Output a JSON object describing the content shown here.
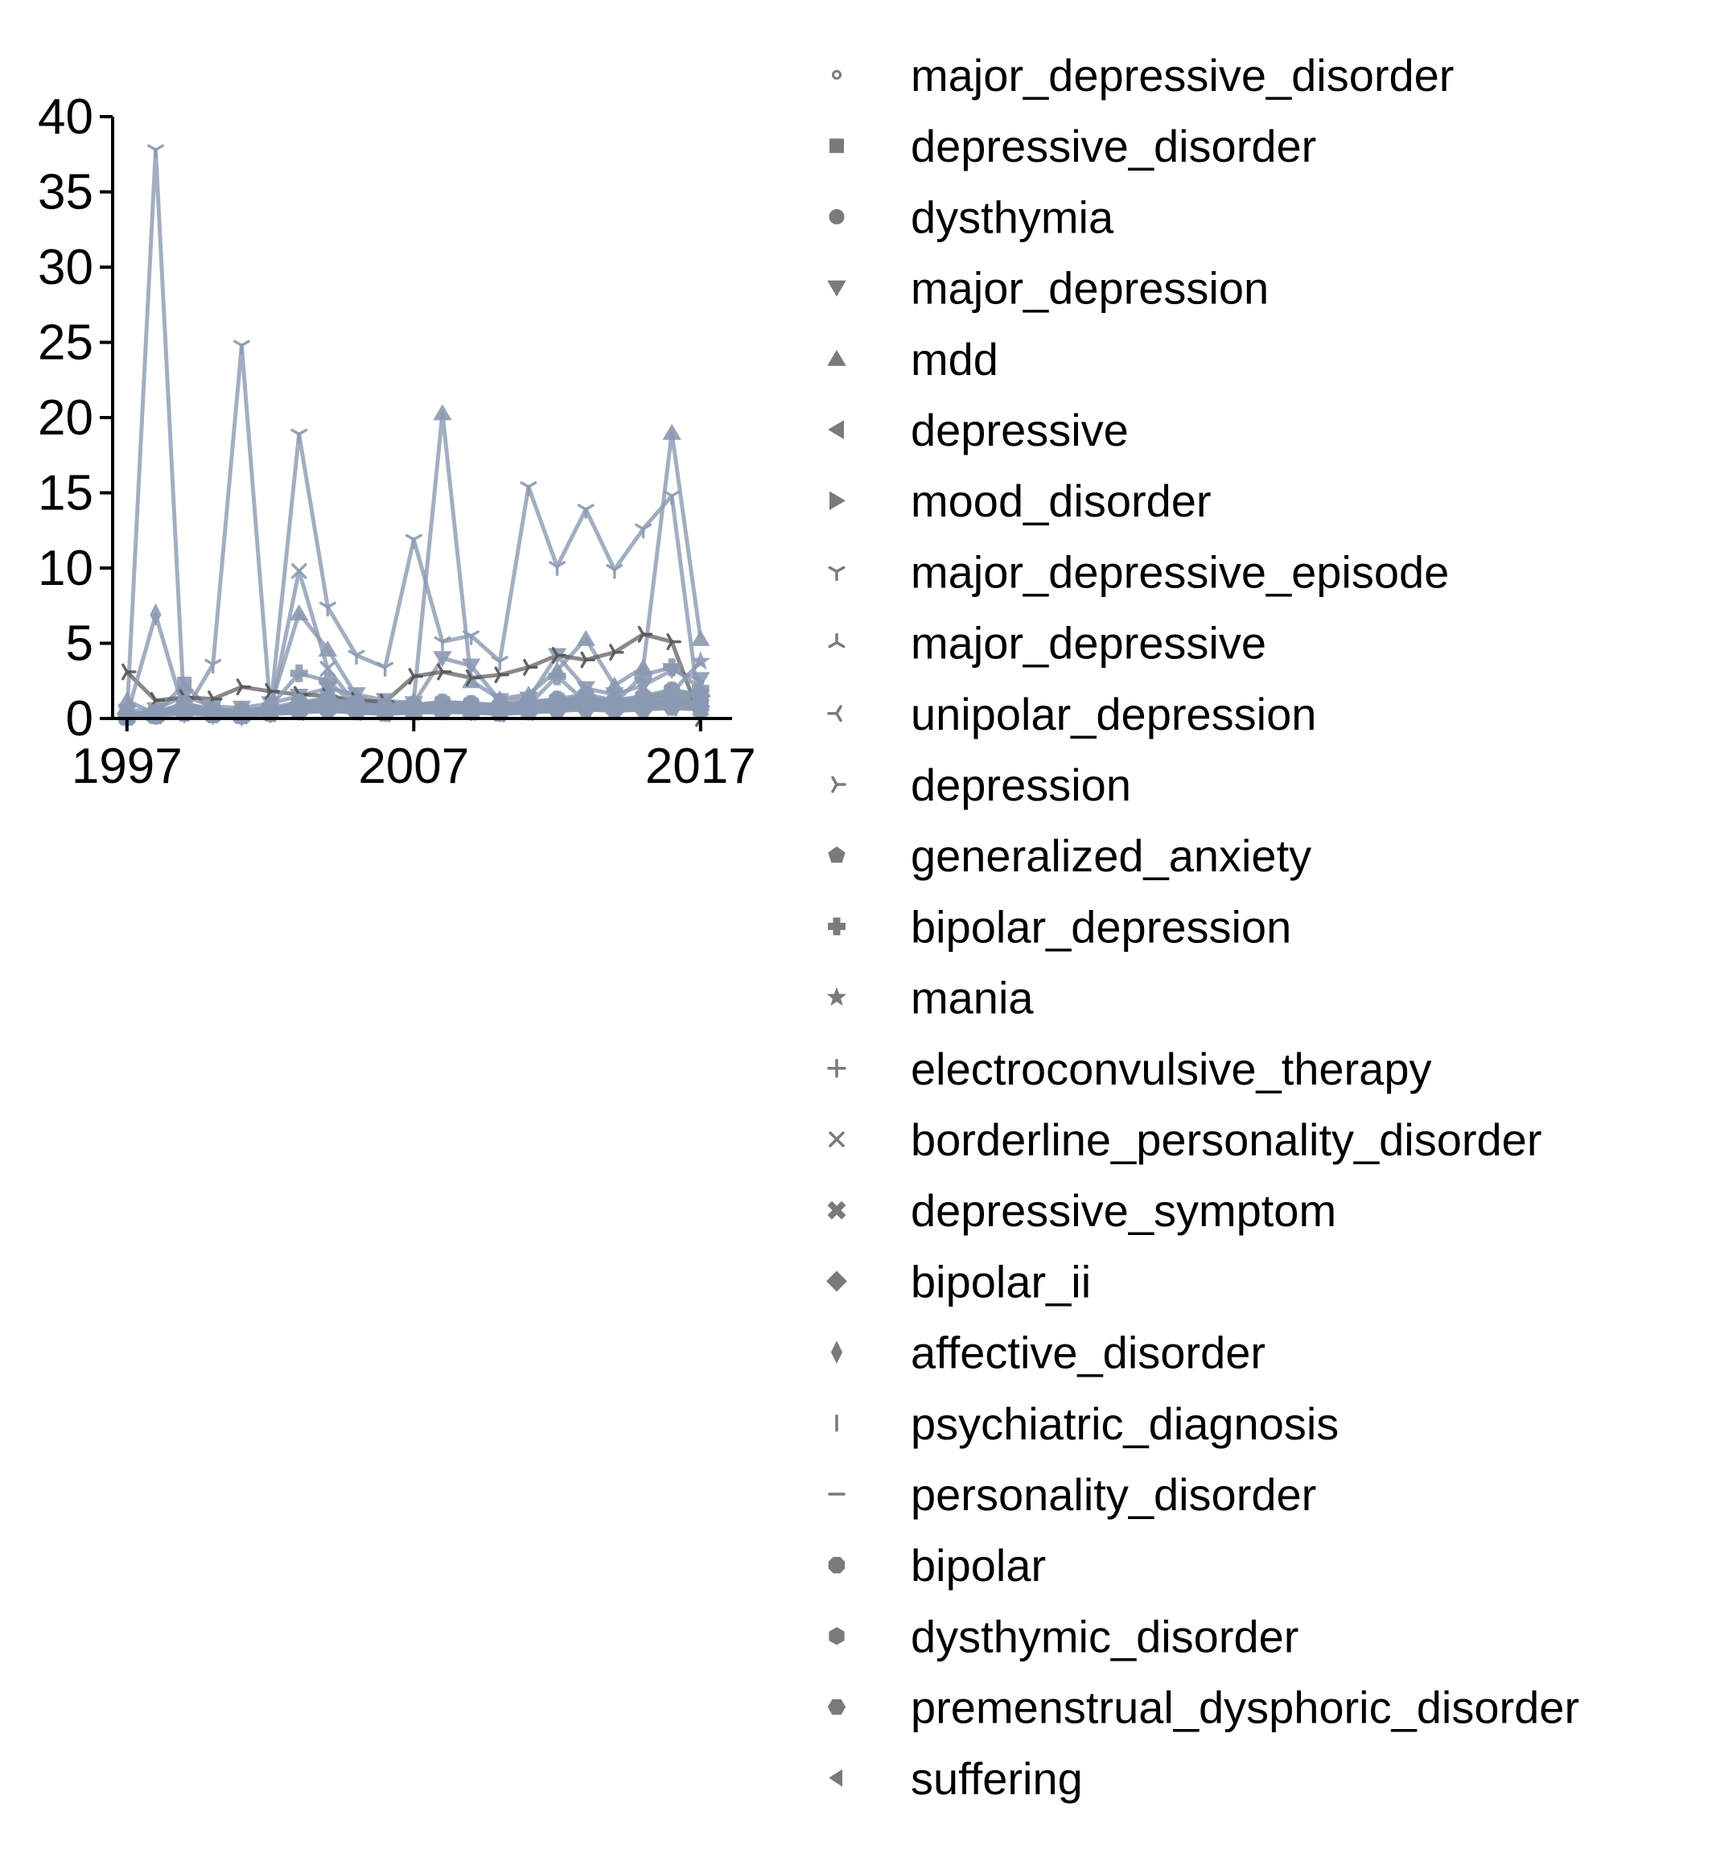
{
  "chart_data": {
    "type": "line",
    "title": "",
    "xlabel": "",
    "ylabel": "",
    "x": [
      1997,
      1998,
      1999,
      2000,
      2001,
      2002,
      2003,
      2004,
      2005,
      2006,
      2007,
      2008,
      2009,
      2010,
      2011,
      2012,
      2013,
      2014,
      2015,
      2016,
      2017
    ],
    "xticks": [
      "1997",
      "2007",
      "2017"
    ],
    "yticks": [
      "0",
      "5",
      "10",
      "15",
      "20",
      "25",
      "30",
      "35",
      "40"
    ],
    "xlim": [
      1996.5,
      2018.1
    ],
    "ylim": [
      0,
      40
    ],
    "grid": false,
    "legend_placement": "right",
    "colors": {
      "series_line": "#8b9ab2",
      "dark_line": "#555555",
      "marker": "#7a7a7a",
      "axis": "#000000"
    },
    "series": [
      {
        "name": "major_depressive_disorder",
        "marker": "point",
        "values": [
          0.3,
          0.4,
          0.8,
          0.6,
          0.5,
          0.7,
          0.9,
          1.0,
          1.1,
          0.8,
          0.9,
          1.1,
          1.0,
          0.9,
          1.1,
          1.2,
          1.3,
          1.2,
          1.4,
          1.6,
          1.5
        ]
      },
      {
        "name": "depressive_disorder",
        "marker": "square",
        "values": [
          0.2,
          0.3,
          2.3,
          0.4,
          0.3,
          0.5,
          0.8,
          1.5,
          1.0,
          0.7,
          0.6,
          0.8,
          0.9,
          0.7,
          0.8,
          1.0,
          1.3,
          1.1,
          1.2,
          1.8,
          1.6
        ]
      },
      {
        "name": "dysthymia",
        "marker": "circle",
        "values": [
          0.1,
          0.2,
          0.5,
          0.3,
          0.2,
          0.4,
          0.5,
          0.6,
          0.5,
          0.4,
          0.5,
          0.6,
          0.5,
          0.4,
          0.5,
          0.7,
          0.8,
          0.6,
          0.7,
          0.9,
          0.8
        ]
      },
      {
        "name": "major_depression",
        "marker": "triangle-down",
        "values": [
          0.5,
          0.6,
          1.5,
          0.8,
          0.7,
          1.0,
          1.5,
          2.0,
          1.6,
          1.2,
          1.0,
          4.0,
          3.5,
          1.2,
          1.3,
          4.2,
          2.0,
          1.6,
          2.2,
          3.2,
          2.6
        ]
      },
      {
        "name": "mdd",
        "marker": "triangle-up",
        "values": [
          1.2,
          0.3,
          1.0,
          0.5,
          0.4,
          0.8,
          7.0,
          4.6,
          1.5,
          0.9,
          1.2,
          20.3,
          2.5,
          1.3,
          1.6,
          3.2,
          5.3,
          2.2,
          3.4,
          19.0,
          5.3
        ]
      },
      {
        "name": "depressive",
        "marker": "triangle-left",
        "values": [
          0.3,
          0.4,
          0.9,
          0.5,
          0.4,
          0.6,
          0.9,
          1.1,
          0.8,
          0.6,
          0.7,
          0.9,
          0.8,
          0.7,
          0.9,
          1.1,
          1.3,
          1.0,
          1.2,
          1.5,
          1.3
        ]
      },
      {
        "name": "mood_disorder",
        "marker": "triangle-right",
        "values": [
          0.2,
          0.3,
          0.8,
          0.4,
          0.3,
          0.5,
          0.8,
          1.0,
          0.9,
          0.7,
          0.7,
          0.9,
          0.8,
          0.6,
          0.8,
          1.0,
          1.2,
          0.9,
          1.1,
          1.4,
          1.2
        ]
      },
      {
        "name": "major_depressive_episode",
        "marker": "tri-down",
        "values": [
          0.2,
          37.8,
          0.4,
          3.6,
          24.8,
          0.6,
          18.9,
          7.4,
          4.2,
          3.4,
          11.9,
          5.1,
          5.5,
          3.8,
          15.4,
          10.1,
          13.9,
          9.9,
          12.6,
          14.8,
          0
        ]
      },
      {
        "name": "major_depressive",
        "marker": "tri-up",
        "values": [
          0.2,
          0.3,
          0.6,
          0.4,
          0.3,
          0.5,
          0.7,
          0.8,
          0.7,
          0.5,
          0.6,
          0.8,
          0.7,
          0.6,
          0.7,
          0.9,
          1.0,
          0.8,
          1.0,
          1.2,
          1.1
        ]
      },
      {
        "name": "unipolar_depression",
        "marker": "tri-left",
        "values": [
          0.1,
          0.2,
          0.4,
          0.3,
          0.2,
          0.3,
          0.4,
          0.5,
          0.4,
          0.3,
          0.4,
          0.5,
          0.4,
          0.3,
          0.4,
          0.5,
          0.6,
          0.5,
          0.6,
          0.7,
          0.6
        ]
      },
      {
        "name": "depression",
        "marker": "tri-right",
        "values": [
          3.1,
          1.2,
          1.4,
          1.3,
          2.1,
          1.8,
          1.6,
          1.5,
          1.2,
          1.1,
          2.8,
          3.1,
          2.7,
          2.9,
          3.4,
          4.2,
          3.9,
          4.4,
          5.6,
          5.1,
          0
        ]
      },
      {
        "name": "generalized_anxiety",
        "marker": "pentagon",
        "values": [
          0.2,
          0.3,
          0.5,
          0.4,
          0.3,
          0.5,
          0.6,
          0.7,
          0.6,
          0.5,
          0.6,
          0.7,
          0.6,
          0.5,
          0.6,
          0.8,
          0.9,
          0.7,
          0.8,
          1.0,
          0.9
        ]
      },
      {
        "name": "bipolar_depression",
        "marker": "plus-filled",
        "values": [
          0.1,
          0.2,
          0.6,
          0.3,
          0.2,
          0.8,
          3.0,
          2.5,
          0.8,
          0.6,
          0.5,
          0.7,
          0.6,
          0.5,
          0.9,
          2.8,
          1.1,
          1.0,
          2.9,
          3.4,
          2.0
        ]
      },
      {
        "name": "mania",
        "marker": "star",
        "values": [
          0.2,
          0.3,
          0.7,
          0.4,
          0.3,
          0.5,
          0.9,
          1.2,
          0.8,
          0.6,
          0.7,
          0.9,
          0.8,
          0.7,
          0.9,
          1.1,
          1.4,
          1.0,
          1.3,
          1.7,
          3.8
        ]
      },
      {
        "name": "electroconvulsive_therapy",
        "marker": "plus",
        "values": [
          0.1,
          0.2,
          0.4,
          0.3,
          0.2,
          0.4,
          0.6,
          0.7,
          0.5,
          0.4,
          0.5,
          0.6,
          0.5,
          0.4,
          0.5,
          0.7,
          0.8,
          0.6,
          0.7,
          0.9,
          0.8
        ]
      },
      {
        "name": "borderline_personality_disorder",
        "marker": "x",
        "values": [
          0.2,
          0.3,
          0.6,
          0.4,
          0.3,
          0.5,
          9.8,
          3.3,
          0.9,
          0.6,
          0.7,
          0.9,
          0.8,
          0.7,
          0.9,
          1.1,
          1.4,
          1.0,
          1.3,
          1.7,
          1.4
        ]
      },
      {
        "name": "depressive_symptom",
        "marker": "x-filled",
        "values": [
          0.1,
          0.2,
          0.5,
          0.3,
          0.2,
          0.4,
          0.6,
          0.7,
          0.6,
          0.4,
          0.5,
          0.6,
          0.5,
          0.4,
          0.6,
          0.8,
          0.9,
          0.7,
          0.8,
          1.0,
          0.9
        ]
      },
      {
        "name": "bipolar_ii",
        "marker": "diamond",
        "values": [
          0.3,
          0.4,
          0.9,
          0.5,
          0.4,
          0.6,
          1.0,
          1.3,
          1.0,
          0.8,
          0.8,
          1.0,
          0.9,
          0.8,
          1.0,
          1.2,
          1.5,
          1.1,
          1.4,
          1.8,
          1.5
        ]
      },
      {
        "name": "affective_disorder",
        "marker": "thin-diamond",
        "values": [
          0.2,
          6.9,
          0.4,
          0.3,
          0.2,
          0.4,
          0.6,
          0.8,
          0.6,
          0.5,
          0.5,
          0.7,
          0.6,
          0.5,
          0.6,
          0.8,
          1.0,
          0.7,
          0.9,
          1.1,
          1.0
        ]
      },
      {
        "name": "psychiatric_diagnosis",
        "marker": "vline",
        "values": [
          0.1,
          0.2,
          0.4,
          0.3,
          0.2,
          0.3,
          0.5,
          0.6,
          0.5,
          0.4,
          0.4,
          0.5,
          0.4,
          0.4,
          0.5,
          0.6,
          0.7,
          0.6,
          0.7,
          0.8,
          0.7
        ]
      },
      {
        "name": "personality_disorder",
        "marker": "hline",
        "values": [
          0.2,
          0.3,
          0.5,
          0.4,
          0.3,
          0.4,
          0.6,
          0.7,
          0.6,
          0.5,
          0.5,
          0.6,
          0.6,
          0.5,
          0.6,
          0.7,
          0.8,
          0.7,
          0.8,
          0.9,
          0.8
        ]
      },
      {
        "name": "bipolar",
        "marker": "octagon",
        "values": [
          0.3,
          0.4,
          1.0,
          0.6,
          0.5,
          0.7,
          1.1,
          1.3,
          1.0,
          0.8,
          0.9,
          1.1,
          1.0,
          0.9,
          1.1,
          1.3,
          1.6,
          1.2,
          1.5,
          1.9,
          1.6
        ]
      },
      {
        "name": "dysthymic_disorder",
        "marker": "hexagon",
        "values": [
          0.1,
          0.2,
          0.4,
          0.3,
          0.2,
          0.3,
          0.5,
          0.6,
          0.5,
          0.4,
          0.4,
          0.5,
          0.5,
          0.4,
          0.5,
          0.6,
          0.7,
          0.6,
          0.7,
          0.8,
          0.7
        ]
      },
      {
        "name": "premenstrual_dysphoric_disorder",
        "marker": "hexagon2",
        "values": [
          0.1,
          0.2,
          0.3,
          0.2,
          0.2,
          0.3,
          0.4,
          0.5,
          0.4,
          0.3,
          0.4,
          0.4,
          0.4,
          0.3,
          0.4,
          0.5,
          0.6,
          0.5,
          0.6,
          0.7,
          0.6
        ]
      },
      {
        "name": "suffering",
        "marker": "caret-left",
        "values": [
          0.2,
          0.3,
          0.6,
          0.4,
          0.3,
          0.5,
          0.7,
          0.9,
          0.7,
          0.5,
          0.6,
          0.8,
          0.7,
          0.6,
          0.7,
          0.9,
          1.0,
          0.8,
          1.0,
          1.2,
          1.1
        ]
      }
    ]
  }
}
